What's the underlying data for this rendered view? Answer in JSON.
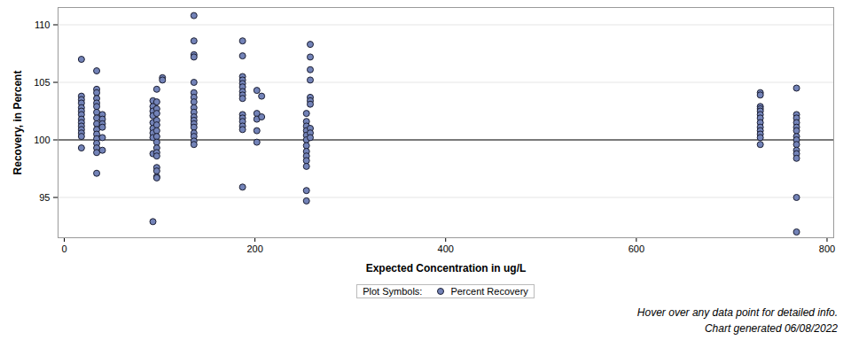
{
  "chart_data": {
    "type": "scatter",
    "x_label": "Expected Concentration in ug/L",
    "y_label": "Recovery, in Percent",
    "legend_title": "Plot Symbols:",
    "annotations": [
      "Hover over any data point for detailed info.",
      "Chart generated 06/08/2022"
    ],
    "xlim": [
      -6.5,
      807
    ],
    "ylim": [
      91.5,
      111.5
    ],
    "xticks": [
      0,
      200,
      400,
      600,
      800
    ],
    "yticks": [
      95,
      100,
      105,
      110
    ],
    "grid": true,
    "reference_line": 100,
    "series": [
      {
        "name": "Percent Recovery",
        "color": "#7383b8",
        "marker": "circle",
        "x": [
          18,
          18,
          18,
          18,
          18,
          18,
          18,
          18,
          18,
          18,
          18,
          18,
          18,
          18,
          34,
          34,
          34,
          34,
          34,
          34,
          34,
          34,
          34,
          34,
          34,
          34,
          34,
          34,
          34,
          34,
          40,
          40,
          40,
          40,
          40,
          40,
          93,
          93,
          93,
          93,
          93,
          93,
          93,
          93,
          93,
          93,
          97,
          97,
          97,
          97,
          97,
          97,
          97,
          97,
          97,
          97,
          97,
          97,
          97,
          97,
          97,
          97,
          103,
          103,
          136,
          136,
          136,
          136,
          136,
          136,
          136,
          136,
          136,
          136,
          136,
          136,
          136,
          136,
          136,
          136,
          136,
          136,
          187,
          187,
          187,
          187,
          187,
          187,
          187,
          187,
          187,
          187,
          187,
          187,
          187,
          187,
          187,
          202,
          202,
          202,
          202,
          202,
          207,
          207,
          254,
          254,
          254,
          254,
          254,
          254,
          254,
          254,
          254,
          254,
          254,
          254,
          254,
          258,
          258,
          258,
          258,
          258,
          258,
          258,
          258,
          258,
          258,
          730,
          730,
          730,
          730,
          730,
          730,
          730,
          730,
          730,
          730,
          730,
          730,
          730,
          768,
          768,
          768,
          768,
          768,
          768,
          768,
          768,
          768,
          768,
          768,
          768,
          768,
          768
        ],
        "values": [
          107.0,
          103.8,
          103.5,
          103.2,
          102.8,
          102.5,
          102.2,
          101.8,
          101.5,
          101.2,
          100.9,
          100.6,
          100.3,
          99.3,
          106.0,
          104.4,
          104.1,
          103.6,
          103.2,
          102.9,
          102.4,
          101.9,
          101.4,
          100.9,
          100.5,
          100.1,
          99.7,
          99.3,
          98.9,
          97.1,
          102.2,
          101.8,
          101.4,
          101.1,
          100.2,
          99.1,
          103.4,
          102.9,
          102.5,
          102.1,
          101.5,
          101.0,
          100.6,
          100.2,
          98.8,
          92.9,
          104.4,
          103.3,
          102.7,
          102.3,
          101.7,
          101.3,
          100.8,
          100.3,
          99.8,
          99.3,
          98.9,
          98.6,
          97.6,
          97.3,
          96.8,
          96.7,
          105.4,
          105.2,
          110.8,
          108.6,
          107.4,
          107.2,
          105.0,
          104.1,
          103.7,
          103.3,
          102.8,
          102.4,
          102.0,
          101.7,
          101.4,
          101.1,
          100.6,
          100.3,
          99.9,
          99.6,
          108.6,
          107.3,
          105.5,
          105.2,
          104.9,
          104.6,
          104.2,
          103.9,
          103.6,
          102.2,
          101.9,
          101.6,
          101.2,
          100.9,
          95.9,
          104.3,
          102.3,
          101.8,
          100.8,
          99.8,
          103.8,
          102.0,
          102.3,
          101.6,
          101.2,
          100.8,
          100.4,
          100.0,
          99.5,
          99.0,
          98.6,
          98.2,
          97.7,
          95.6,
          94.7,
          108.3,
          107.2,
          106.1,
          105.2,
          103.7,
          103.4,
          103.1,
          101.0,
          100.6,
          100.2,
          104.1,
          103.9,
          102.9,
          102.7,
          102.5,
          102.2,
          101.9,
          101.5,
          101.1,
          100.8,
          100.5,
          100.2,
          99.6,
          104.5,
          102.2,
          101.9,
          101.5,
          101.1,
          100.8,
          100.3,
          100.0,
          99.6,
          99.1,
          98.8,
          98.4,
          95.0,
          92.0
        ]
      }
    ]
  }
}
